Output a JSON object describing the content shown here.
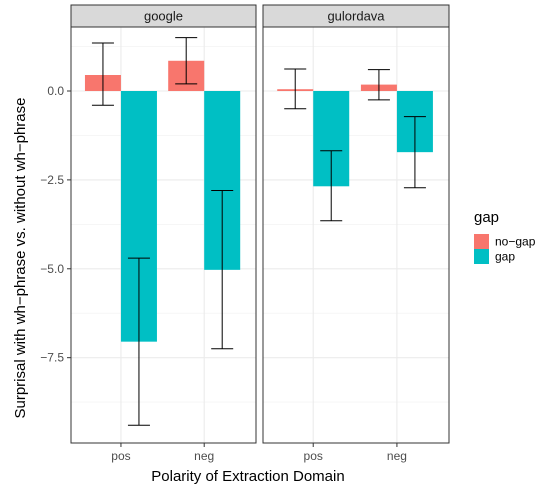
{
  "chart_data": {
    "type": "bar",
    "xlabel": "Polarity of Extraction Domain",
    "ylabel": "Surprisal with wh−phrase vs. without wh−phrase",
    "ylim": [
      -9.9,
      1.8
    ],
    "yticks": [
      0.0,
      -2.5,
      -5.0,
      -7.5
    ],
    "ytick_labels": [
      "0.0",
      "−2.5",
      "−5.0",
      "−7.5"
    ],
    "categories": [
      "pos",
      "neg"
    ],
    "grid": true,
    "legend": {
      "title": "gap",
      "position": "right",
      "entries": [
        {
          "label": "no−gap",
          "color": "#F8766D"
        },
        {
          "label": "gap",
          "color": "#00BFC4"
        }
      ]
    },
    "facets": [
      {
        "title": "google",
        "series": [
          {
            "key": "no-gap",
            "color": "#F8766D",
            "values": [
              0.45,
              0.85
            ],
            "err_low": [
              -0.4,
              0.2
            ],
            "err_high": [
              1.35,
              1.5
            ]
          },
          {
            "key": "gap",
            "color": "#00BFC4",
            "values": [
              -7.05,
              -5.03
            ],
            "err_low": [
              -9.4,
              -7.25
            ],
            "err_high": [
              -4.7,
              -2.8
            ]
          }
        ]
      },
      {
        "title": "gulordava",
        "series": [
          {
            "key": "no-gap",
            "color": "#F8766D",
            "values": [
              0.05,
              0.18
            ],
            "err_low": [
              -0.5,
              -0.25
            ],
            "err_high": [
              0.62,
              0.6
            ]
          },
          {
            "key": "gap",
            "color": "#00BFC4",
            "values": [
              -2.68,
              -1.72
            ],
            "err_low": [
              -3.65,
              -2.72
            ],
            "err_high": [
              -1.68,
              -0.72
            ]
          }
        ]
      }
    ]
  }
}
